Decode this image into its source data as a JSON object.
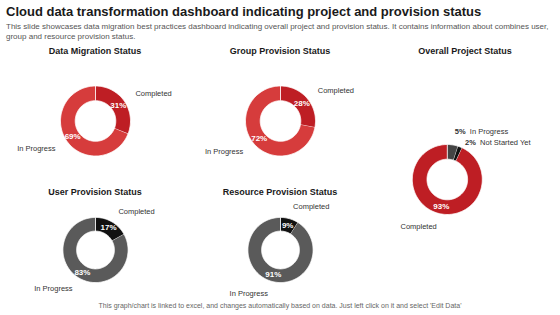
{
  "title": "Cloud data transformation dashboard indicating project and provision status",
  "subtitle": "This slide showcases data migration best practices dashboard indicating overall project and provision status. It contains information about combines user, group and resource provision status.",
  "annotations": [
    "This graph/chart is linked to excel, and changes automatically based on data. Just left click on it and select 'Edit Data'"
  ],
  "chart_data": [
    {
      "type": "pie",
      "title": "Data Migration Status",
      "categories": [
        "Completed",
        "In Progress"
      ],
      "values": [
        31,
        69
      ],
      "value_labels": [
        "31%",
        "69%"
      ],
      "colors": [
        "#be1e24",
        "#d63c3c"
      ],
      "data_labels": true
    },
    {
      "type": "pie",
      "title": "Group Provision Status",
      "categories": [
        "Completed",
        "In Progress"
      ],
      "values": [
        28,
        72
      ],
      "value_labels": [
        "28%",
        "72%"
      ],
      "colors": [
        "#be1e24",
        "#d63c3c"
      ],
      "data_labels": true
    },
    {
      "type": "pie",
      "title": "Overall Project Status",
      "categories": [
        "In Progress",
        "Not Started Yet",
        "Completed"
      ],
      "values": [
        5,
        2,
        93
      ],
      "value_labels": [
        "5%",
        "2%",
        "93%"
      ],
      "colors": [
        "#444444",
        "#111111",
        "#be1e24"
      ],
      "data_labels": true
    },
    {
      "type": "pie",
      "title": "User Provision Status",
      "categories": [
        "Completed",
        "In Progress"
      ],
      "values": [
        17,
        83
      ],
      "value_labels": [
        "17%",
        "83%"
      ],
      "colors": [
        "#111111",
        "#5a5a5a"
      ],
      "data_labels": true
    },
    {
      "type": "pie",
      "title": "Resource Provision Status",
      "categories": [
        "Completed",
        "In Progress"
      ],
      "values": [
        9,
        91
      ],
      "value_labels": [
        "9%",
        "91%"
      ],
      "colors": [
        "#111111",
        "#5a5a5a"
      ],
      "data_labels": true
    }
  ]
}
